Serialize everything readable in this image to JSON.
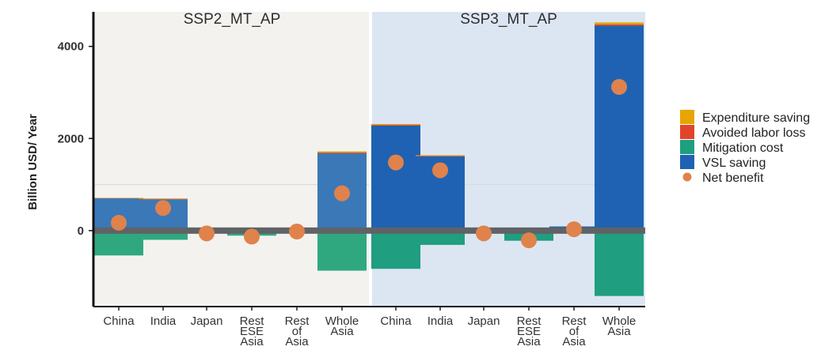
{
  "chart_data": {
    "type": "bar",
    "ylabel": "Billion USD/ Year",
    "ylim": [
      -1650,
      4750
    ],
    "yticks": [
      0,
      2000,
      4000
    ],
    "categories": [
      [
        "China"
      ],
      [
        "India"
      ],
      [
        "Japan"
      ],
      [
        "Rest",
        "ESE",
        "Asia"
      ],
      [
        "Rest",
        "of",
        "Asia"
      ],
      [
        "Whole",
        "Asia"
      ]
    ],
    "legend": {
      "placement": "right",
      "entries": [
        {
          "key": "expenditure",
          "name": "Expenditure saving",
          "color": "#e8a400",
          "shape": "square"
        },
        {
          "key": "labor",
          "name": "Avoided labor loss",
          "color": "#e0452a",
          "shape": "square"
        },
        {
          "key": "mitigation",
          "name": "Mitigation cost",
          "color": "#1f9e80",
          "shape": "square"
        },
        {
          "key": "vsl",
          "name": "VSL saving",
          "color": "#1f62b3",
          "shape": "square"
        },
        {
          "key": "net",
          "name": "Net benefit",
          "color": "#e0824c",
          "shape": "dot"
        }
      ]
    },
    "panels": [
      {
        "title": "SSP2_MT_AP",
        "background": "#f4f2ee",
        "vsl_color": "#3a78b8",
        "mitigation_color": "#2fa880",
        "vsl": [
          700,
          680,
          0,
          0,
          0,
          1680
        ],
        "labor": [
          5,
          8,
          0,
          0,
          0,
          15
        ],
        "expenditure": [
          8,
          12,
          0,
          0,
          0,
          25
        ],
        "mitigation": [
          -540,
          -200,
          -10,
          -110,
          -40,
          -870
        ],
        "net": [
          170,
          490,
          -60,
          -130,
          -20,
          810
        ]
      },
      {
        "title": "SSP3_MT_AP",
        "background": "#dce6f3",
        "vsl_color": "#1f62b3",
        "mitigation_color": "#1f9e80",
        "vsl": [
          2280,
          1610,
          0,
          0,
          90,
          4450
        ],
        "labor": [
          15,
          12,
          0,
          0,
          0,
          25
        ],
        "expenditure": [
          20,
          15,
          0,
          0,
          0,
          45
        ],
        "mitigation": [
          -830,
          -310,
          -10,
          -220,
          -30,
          -1420
        ],
        "net": [
          1480,
          1310,
          -60,
          -210,
          30,
          3120
        ]
      }
    ]
  }
}
